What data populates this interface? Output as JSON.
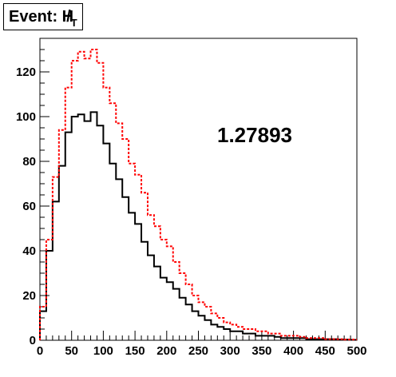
{
  "chart_data": {
    "type": "line",
    "title": "Event: H",
    "title_symbol": "/",
    "title_subscript": "T",
    "annotation": "1.27893",
    "x_range": [
      0,
      500
    ],
    "y_range": [
      0,
      135
    ],
    "bin_width": 10,
    "x_ticks": [
      0,
      50,
      100,
      150,
      200,
      250,
      300,
      350,
      400,
      450,
      500
    ],
    "y_ticks": [
      0,
      20,
      40,
      60,
      80,
      100,
      120
    ],
    "grid": false,
    "series": [
      {
        "style": "solid",
        "color": "#000000",
        "values": [
          13,
          40,
          62,
          78,
          93,
          100,
          101,
          98,
          102,
          96,
          88,
          79,
          72,
          64,
          57,
          52,
          44,
          38,
          33,
          28,
          26,
          23,
          19,
          16,
          13,
          11,
          9,
          7,
          6,
          5,
          4,
          4,
          3,
          3,
          2,
          2,
          2,
          1.5,
          1,
          1,
          1,
          1,
          0.5,
          0.5,
          0.5,
          0.5,
          0.5,
          0.3,
          0.3,
          0.2
        ]
      },
      {
        "style": "dashed",
        "color": "#ff0000",
        "values": [
          15,
          45,
          73,
          94,
          113,
          125,
          129,
          126,
          130,
          124,
          113,
          106,
          97,
          90,
          79,
          74,
          66,
          56,
          51,
          45,
          42,
          35,
          30,
          25,
          20,
          17,
          15,
          12,
          10,
          8,
          7,
          6,
          5,
          5,
          4,
          4,
          3,
          3,
          2,
          2,
          2,
          1.5,
          1,
          1,
          1,
          0.5,
          0.5,
          0.5,
          0.3,
          0.3
        ]
      }
    ]
  }
}
